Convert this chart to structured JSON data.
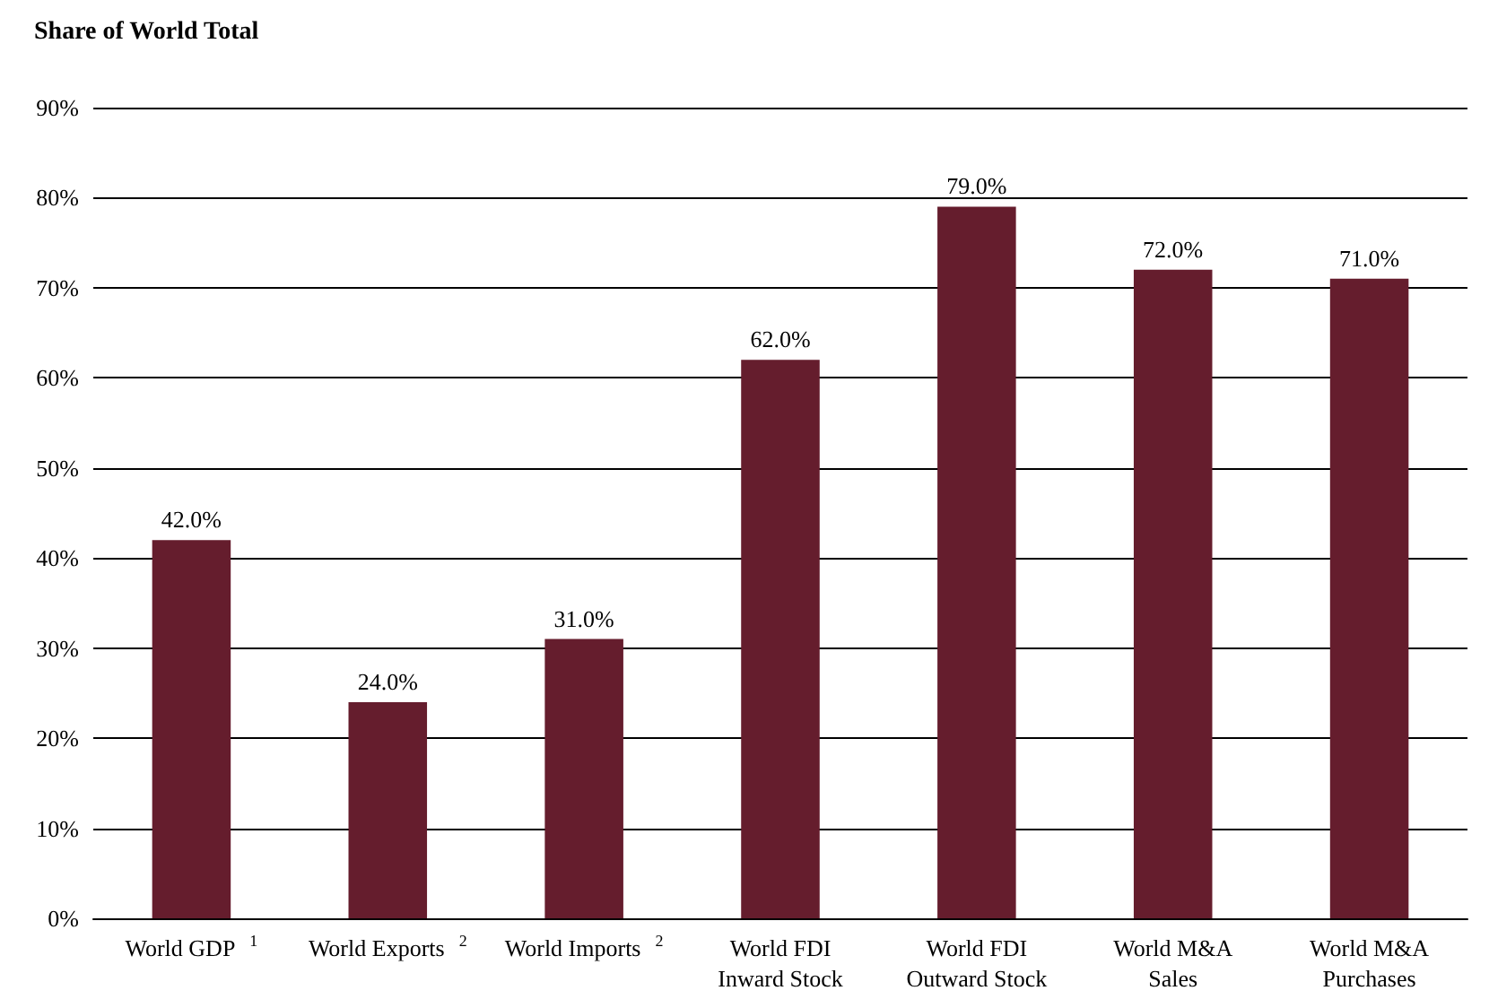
{
  "chart_data": {
    "type": "bar",
    "title": "Share of World Total",
    "categories": [
      "World GDP$^{1}$",
      "World Exports$^{2}$",
      "World Imports$^{2}$",
      "World FDI\nInward Stock",
      "World FDI\nOutward Stock",
      "World M&A\nSales",
      "World M&A\nPurchases"
    ],
    "values": [
      42,
      24,
      31,
      62,
      79,
      72,
      71
    ],
    "value_labels": [
      "42.0%",
      "24.0%",
      "31.0%",
      "62.0%",
      "79.0%",
      "72.0%",
      "71.0%"
    ],
    "color": "#651d2d",
    "ylim": [
      0,
      90
    ],
    "yticks": [
      {
        "value": 0,
        "label": "0%"
      },
      {
        "value": 10,
        "label": "10%"
      },
      {
        "value": 20,
        "label": "20%"
      },
      {
        "value": 30,
        "label": "30%"
      },
      {
        "value": 40,
        "label": "40%"
      },
      {
        "value": 50,
        "label": "50%"
      },
      {
        "value": 60,
        "label": "60%"
      },
      {
        "value": 70,
        "label": "70%"
      },
      {
        "value": 80,
        "label": "80%"
      },
      {
        "value": 90,
        "label": "90%"
      }
    ],
    "grid": "y"
  }
}
